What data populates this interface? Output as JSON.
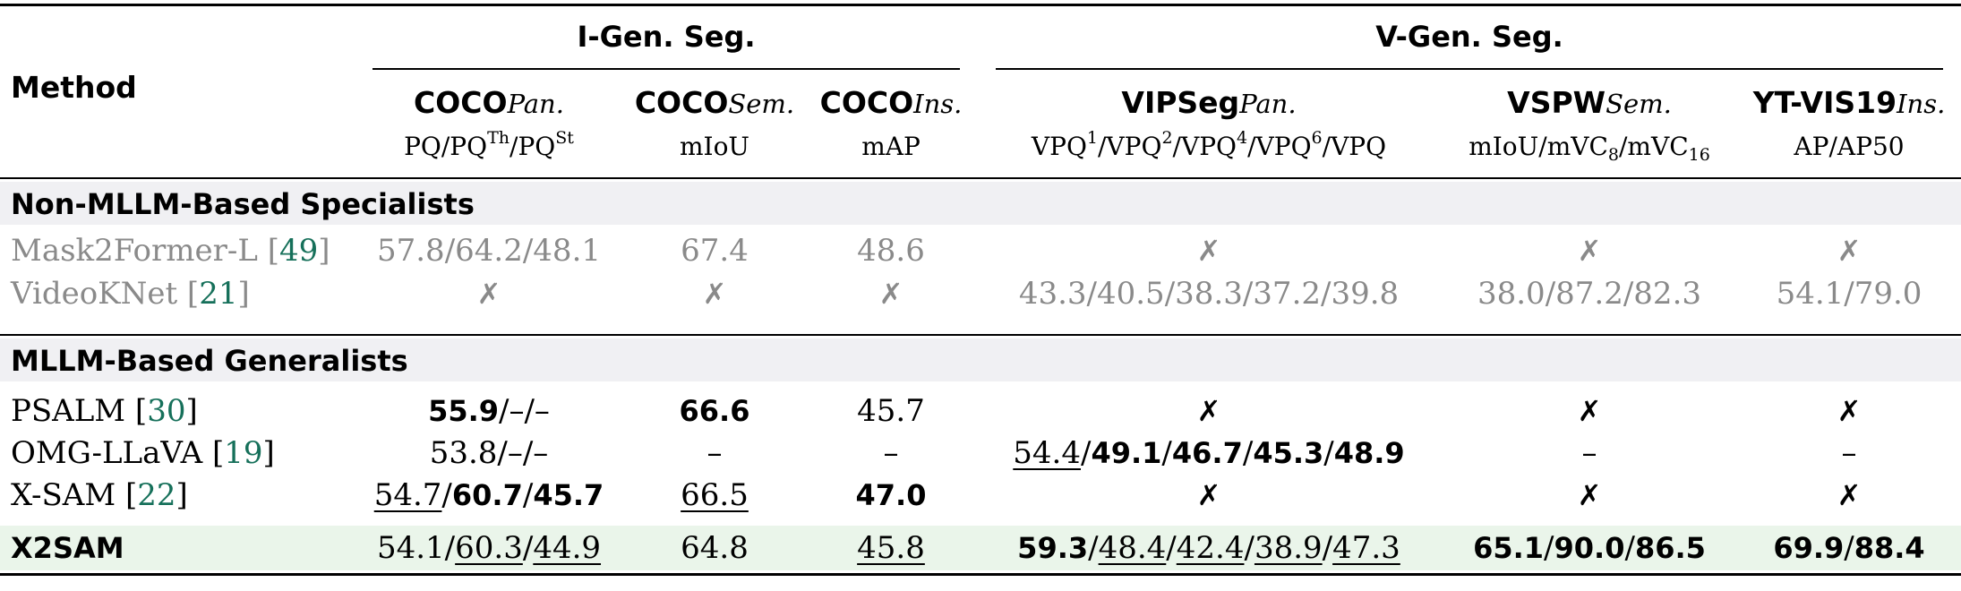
{
  "header": {
    "method_label": "Method",
    "group_image": "I-Gen. Seg.",
    "group_video": "V-Gen. Seg."
  },
  "columns": [
    {
      "name": "COCO",
      "sub": "Pan.",
      "metric_html": "PQ/PQ<sup>Th</sup>/PQ<sup>St</sup>"
    },
    {
      "name": "COCO",
      "sub": "Sem.",
      "metric_html": "mIoU"
    },
    {
      "name": "COCO",
      "sub": "Ins.",
      "metric_html": "mAP"
    },
    {
      "name": "VIPSeg",
      "sub": "Pan.",
      "metric_html": "VPQ<sup>1</sup>/VPQ<sup>2</sup>/VPQ<sup>4</sup>/VPQ<sup>6</sup>/VPQ"
    },
    {
      "name": "VSPW",
      "sub": "Sem.",
      "metric_html": "mIoU/mVC<sub>8</sub>/mVC<sub>16</sub>"
    },
    {
      "name": "YT-VIS19",
      "sub": "Ins.",
      "metric_html": "AP/AP50"
    }
  ],
  "sections": [
    {
      "title": "Non-MLLM-Based Specialists",
      "rows": [
        {
          "name": "Mask2Former-L",
          "cite": "49",
          "gray": true,
          "cells": [
            [
              {
                "t": "57.8/64.2/48.1"
              }
            ],
            [
              {
                "t": "67.4"
              }
            ],
            [
              {
                "t": "48.6"
              }
            ],
            [
              {
                "t": "✗",
                "x": true
              }
            ],
            [
              {
                "t": "✗",
                "x": true
              }
            ],
            [
              {
                "t": "✗",
                "x": true
              }
            ]
          ]
        },
        {
          "name": "VideoKNet",
          "cite": "21",
          "gray": true,
          "cells": [
            [
              {
                "t": "✗",
                "x": true
              }
            ],
            [
              {
                "t": "✗",
                "x": true
              }
            ],
            [
              {
                "t": "✗",
                "x": true
              }
            ],
            [
              {
                "t": "43.3/40.5/38.3/37.2/39.8"
              }
            ],
            [
              {
                "t": "38.0/87.2/82.3"
              }
            ],
            [
              {
                "t": "54.1/79.0"
              }
            ]
          ]
        }
      ]
    },
    {
      "title": "MLLM-Based Generalists",
      "rows": [
        {
          "name": "PSALM",
          "cite": "30",
          "cells": [
            [
              {
                "t": "55.9",
                "b": true
              },
              {
                "t": "/–/–"
              }
            ],
            [
              {
                "t": "66.6",
                "b": true
              }
            ],
            [
              {
                "t": "45.7"
              }
            ],
            [
              {
                "t": "✗",
                "x": true
              }
            ],
            [
              {
                "t": "✗",
                "x": true
              }
            ],
            [
              {
                "t": "✗",
                "x": true
              }
            ]
          ]
        },
        {
          "name": "OMG-LLaVA",
          "cite": "19",
          "cells": [
            [
              {
                "t": "53.8/–/–"
              }
            ],
            [
              {
                "t": "–"
              }
            ],
            [
              {
                "t": "–"
              }
            ],
            [
              {
                "t": "54.4",
                "u": true
              },
              {
                "t": "/"
              },
              {
                "t": "49.1",
                "b": true
              },
              {
                "t": "/"
              },
              {
                "t": "46.7",
                "b": true
              },
              {
                "t": "/"
              },
              {
                "t": "45.3",
                "b": true
              },
              {
                "t": "/"
              },
              {
                "t": "48.9",
                "b": true
              }
            ],
            [
              {
                "t": "–"
              }
            ],
            [
              {
                "t": "–"
              }
            ]
          ]
        },
        {
          "name": "X-SAM",
          "cite": "22",
          "cells": [
            [
              {
                "t": "54.7",
                "u": true
              },
              {
                "t": "/"
              },
              {
                "t": "60.7",
                "b": true
              },
              {
                "t": "/"
              },
              {
                "t": "45.7",
                "b": true
              }
            ],
            [
              {
                "t": "66.5",
                "u": true
              }
            ],
            [
              {
                "t": "47.0",
                "b": true
              }
            ],
            [
              {
                "t": "✗",
                "x": true
              }
            ],
            [
              {
                "t": "✗",
                "x": true
              }
            ],
            [
              {
                "t": "✗",
                "x": true
              }
            ]
          ]
        },
        {
          "name": "X2SAM",
          "cite": "",
          "highlight": true,
          "boldname": true,
          "cells": [
            [
              {
                "t": "54.1/"
              },
              {
                "t": "60.3",
                "u": true
              },
              {
                "t": "/"
              },
              {
                "t": "44.9",
                "u": true
              }
            ],
            [
              {
                "t": "64.8"
              }
            ],
            [
              {
                "t": "45.8",
                "u": true
              }
            ],
            [
              {
                "t": "59.3",
                "b": true
              },
              {
                "t": "/"
              },
              {
                "t": "48.4",
                "u": true
              },
              {
                "t": "/"
              },
              {
                "t": "42.4",
                "u": true
              },
              {
                "t": "/"
              },
              {
                "t": "38.9",
                "u": true
              },
              {
                "t": "/"
              },
              {
                "t": "47.3",
                "u": true
              }
            ],
            [
              {
                "t": "65.1",
                "b": true
              },
              {
                "t": "/"
              },
              {
                "t": "90.0",
                "b": true
              },
              {
                "t": "/"
              },
              {
                "t": "86.5",
                "b": true
              }
            ],
            [
              {
                "t": "69.9",
                "b": true
              },
              {
                "t": "/"
              },
              {
                "t": "88.4",
                "b": true
              }
            ]
          ]
        }
      ]
    }
  ],
  "colors": {
    "section_band": "#f0f0f3",
    "highlight_row": "#eaf5ea",
    "gray_text": "#8a8a8a",
    "citation": "#16705a"
  }
}
